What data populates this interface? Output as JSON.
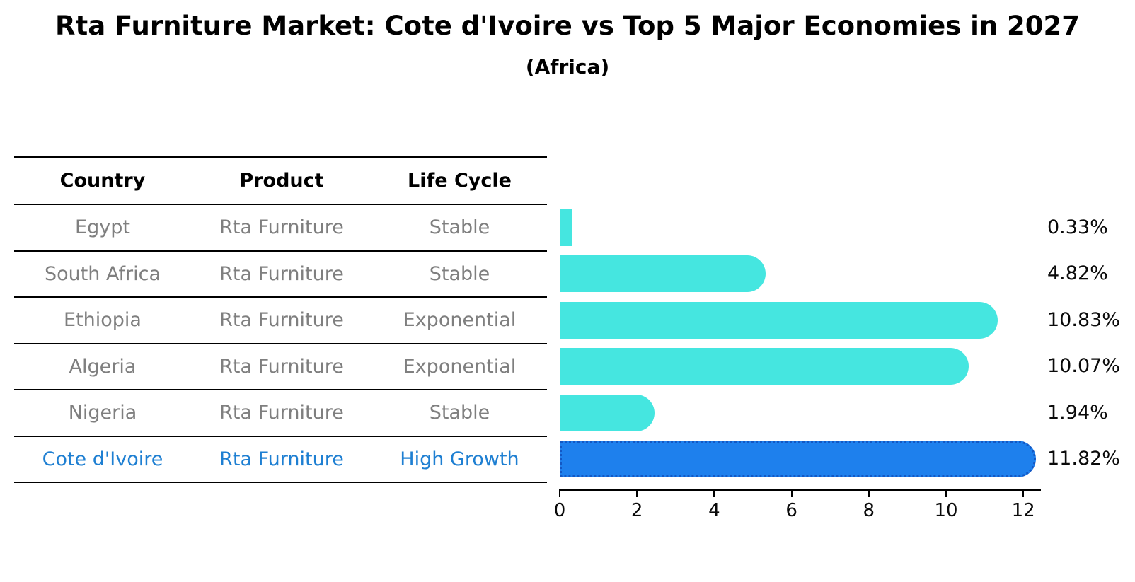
{
  "title": "Rta Furniture Market: Cote d'Ivoire vs Top 5 Major Economies in 2027",
  "subtitle": "(Africa)",
  "table": {
    "headers": [
      "Country",
      "Product",
      "Life Cycle"
    ]
  },
  "chart_data": {
    "type": "bar",
    "orientation": "horizontal",
    "title": "Rta Furniture Market: Cote d'Ivoire vs Top 5 Major Economies in 2027",
    "subtitle": "(Africa)",
    "xlabel": "",
    "ylabel": "",
    "xlim": [
      0,
      12.4
    ],
    "xticks": [
      0,
      2,
      4,
      6,
      8,
      10,
      12
    ],
    "grid": false,
    "legend": "none",
    "categories": [
      "Egypt",
      "South Africa",
      "Ethiopia",
      "Algeria",
      "Nigeria",
      "Cote d'Ivoire"
    ],
    "values": [
      0.33,
      4.82,
      10.83,
      10.07,
      1.94,
      11.82
    ],
    "value_labels": [
      "0.33%",
      "4.82%",
      "10.83%",
      "10.07%",
      "1.94%",
      "11.82%"
    ],
    "rows": [
      {
        "country": "Egypt",
        "product": "Rta Furniture",
        "life_cycle": "Stable",
        "value": 0.33,
        "label": "0.33%",
        "highlighted": false
      },
      {
        "country": "South Africa",
        "product": "Rta Furniture",
        "life_cycle": "Stable",
        "value": 4.82,
        "label": "4.82%",
        "highlighted": false
      },
      {
        "country": "Ethiopia",
        "product": "Rta Furniture",
        "life_cycle": "Exponential",
        "value": 10.83,
        "label": "10.83%",
        "highlighted": false
      },
      {
        "country": "Algeria",
        "product": "Rta Furniture",
        "life_cycle": "Exponential",
        "value": 10.07,
        "label": "10.07%",
        "highlighted": false
      },
      {
        "country": "Nigeria",
        "product": "Rta Furniture",
        "life_cycle": "Stable",
        "value": 1.94,
        "label": "1.94%",
        "highlighted": false
      },
      {
        "country": "Cote d'Ivoire",
        "product": "Rta Furniture",
        "life_cycle": "High Growth",
        "value": 11.82,
        "label": "11.82%",
        "highlighted": true
      }
    ],
    "colors": {
      "bar": "#45E6E0",
      "highlight_bar": "#1E80ED",
      "highlight_border": "#1358C4",
      "highlight_text": "#1E7FD2",
      "row_text": "#7f7f7f",
      "header_text": "#000000",
      "axis": "#000000"
    }
  }
}
